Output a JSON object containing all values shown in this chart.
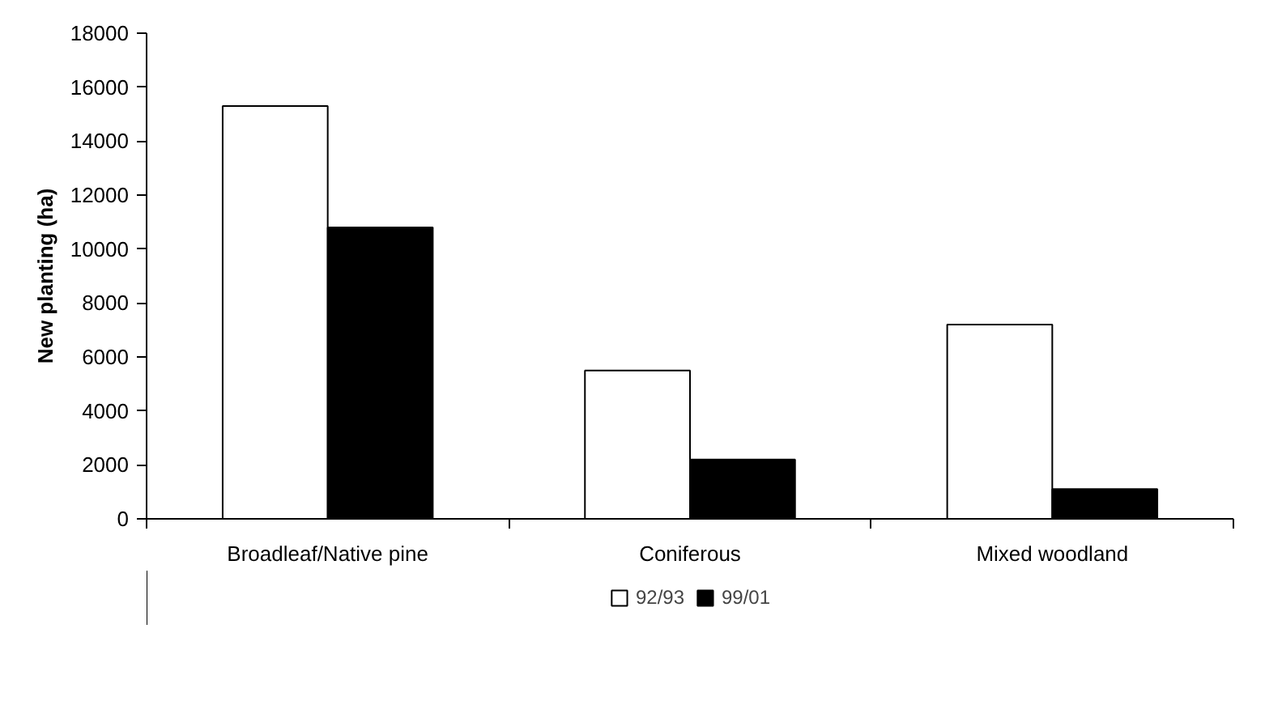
{
  "chart_data": {
    "type": "bar",
    "ylabel": "New planting (ha)",
    "categories": [
      "Broadleaf/Native pine",
      "Coniferous",
      "Mixed woodland"
    ],
    "series": [
      {
        "name": "92/93",
        "color": "#ffffff",
        "values": [
          15300,
          5500,
          7200
        ]
      },
      {
        "name": "99/01",
        "color": "#000000",
        "values": [
          10800,
          2200,
          1100
        ]
      }
    ],
    "ylim": [
      0,
      18000
    ],
    "yticks": [
      0,
      2000,
      4000,
      6000,
      8000,
      10000,
      12000,
      14000,
      16000,
      18000
    ],
    "grid": false,
    "legend": "bottom"
  }
}
